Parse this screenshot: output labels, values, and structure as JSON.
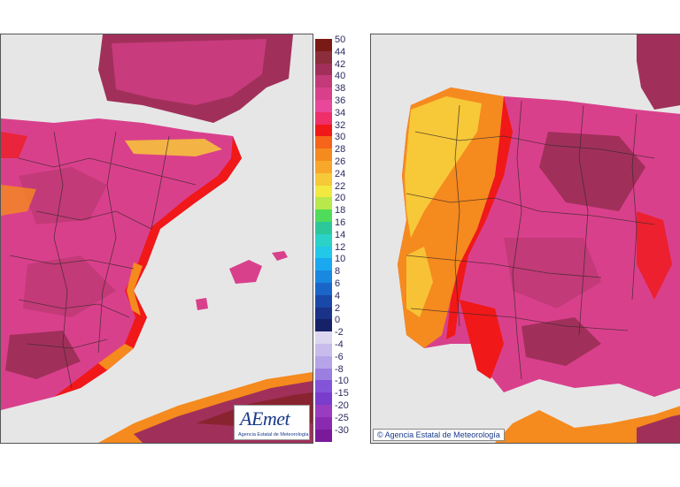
{
  "legend": {
    "entries": [
      {
        "label": "50",
        "color": "#7a1a14"
      },
      {
        "label": "44",
        "color": "#8b2d3a"
      },
      {
        "label": "42",
        "color": "#a0305a"
      },
      {
        "label": "40",
        "color": "#c23a78"
      },
      {
        "label": "38",
        "color": "#d9408c"
      },
      {
        "label": "36",
        "color": "#e8479a"
      },
      {
        "label": "34",
        "color": "#ee2f6a"
      },
      {
        "label": "32",
        "color": "#f01818"
      },
      {
        "label": "30",
        "color": "#f5641a"
      },
      {
        "label": "28",
        "color": "#f58a1e"
      },
      {
        "label": "26",
        "color": "#f7a82a"
      },
      {
        "label": "24",
        "color": "#f7c838"
      },
      {
        "label": "22",
        "color": "#f2e840"
      },
      {
        "label": "20",
        "color": "#b8e84a"
      },
      {
        "label": "18",
        "color": "#4fdc5a"
      },
      {
        "label": "16",
        "color": "#2cc89a"
      },
      {
        "label": "14",
        "color": "#2ad2c8"
      },
      {
        "label": "12",
        "color": "#22c8e8"
      },
      {
        "label": "10",
        "color": "#1aa8f0"
      },
      {
        "label": "8",
        "color": "#1888e0"
      },
      {
        "label": "6",
        "color": "#1a66c8"
      },
      {
        "label": "4",
        "color": "#1a48a8"
      },
      {
        "label": "2",
        "color": "#1a3288"
      },
      {
        "label": "0",
        "color": "#162268"
      },
      {
        "label": "-2",
        "color": "#dcd6f0"
      },
      {
        "label": "-4",
        "color": "#c8bcec"
      },
      {
        "label": "-6",
        "color": "#b6a4e8"
      },
      {
        "label": "-8",
        "color": "#9a7ee0"
      },
      {
        "label": "-10",
        "color": "#8454d8"
      },
      {
        "label": "-15",
        "color": "#7a3ccc"
      },
      {
        "label": "-20",
        "color": "#9a3cc0"
      },
      {
        "label": "-25",
        "color": "#8a2ab0"
      },
      {
        "label": "-30",
        "color": "#7a1a9a"
      }
    ]
  },
  "left_map": {
    "logo_word": "AEmet",
    "logo_sub": "Agencia Estatal de Meteorología"
  },
  "right_map": {
    "copyright": "© Agencia Estatal de Meteorología"
  },
  "colors": {
    "sea": "#e6e6e6",
    "hot_magenta": "#d9408c",
    "very_hot": "#a0305a",
    "red": "#f01818",
    "orange": "#f58a1e",
    "yellow": "#f7c838",
    "border_lines": "#3a2a2a"
  }
}
